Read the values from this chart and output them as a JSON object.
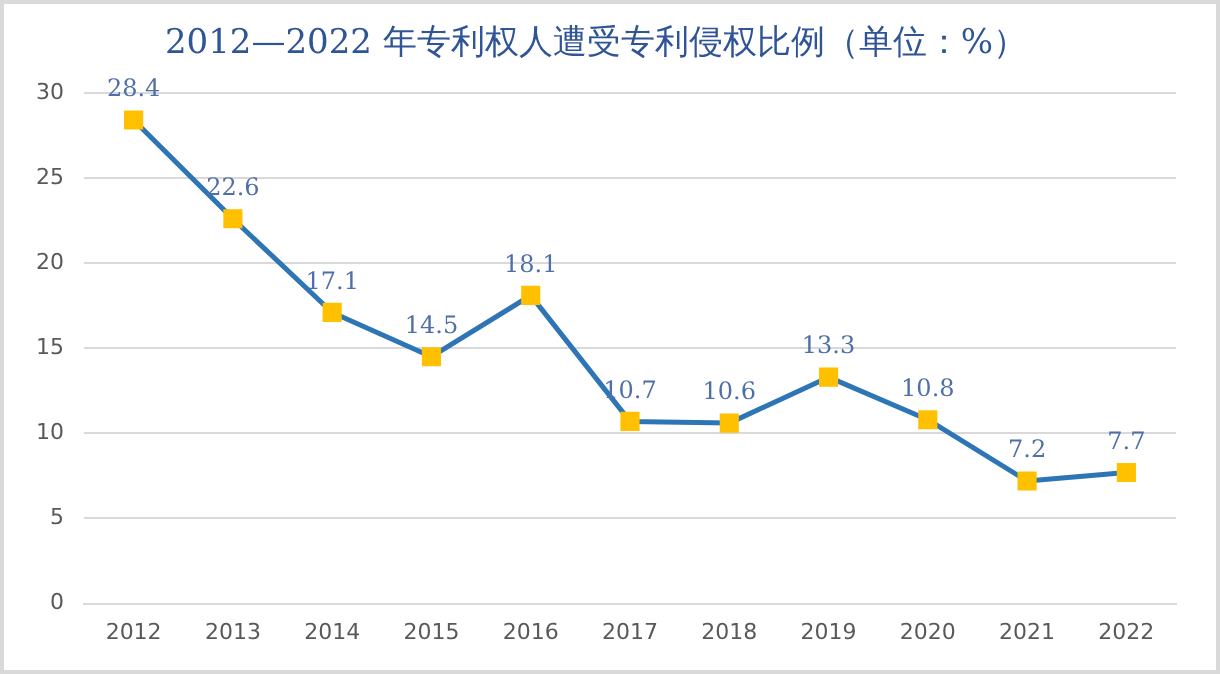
{
  "chart_data": {
    "type": "line",
    "title": "2012—2022 年专利权人遭受专利侵权比例（单位：%）",
    "categories": [
      "2012",
      "2013",
      "2014",
      "2015",
      "2016",
      "2017",
      "2018",
      "2019",
      "2020",
      "2021",
      "2022"
    ],
    "series": [
      {
        "color": "#2e75b6",
        "colors": [
          "#ffc000",
          "#ffc000",
          "#ffc000",
          "#ffc000",
          "#ffc000",
          "#ffc000",
          "#ffc000",
          "#ffc000",
          "#ffc000",
          "#ffc000",
          "#ffc000"
        ],
        "values": [
          28.4,
          22.6,
          17.1,
          14.5,
          18.1,
          10.7,
          10.6,
          13.3,
          10.8,
          7.2,
          7.7
        ]
      }
    ],
    "ylim": [
      0,
      30
    ],
    "yticks": [
      0,
      5,
      10,
      15,
      20,
      25,
      30
    ],
    "grid": "y",
    "legend": false,
    "marker": "square",
    "data_labels": true
  }
}
